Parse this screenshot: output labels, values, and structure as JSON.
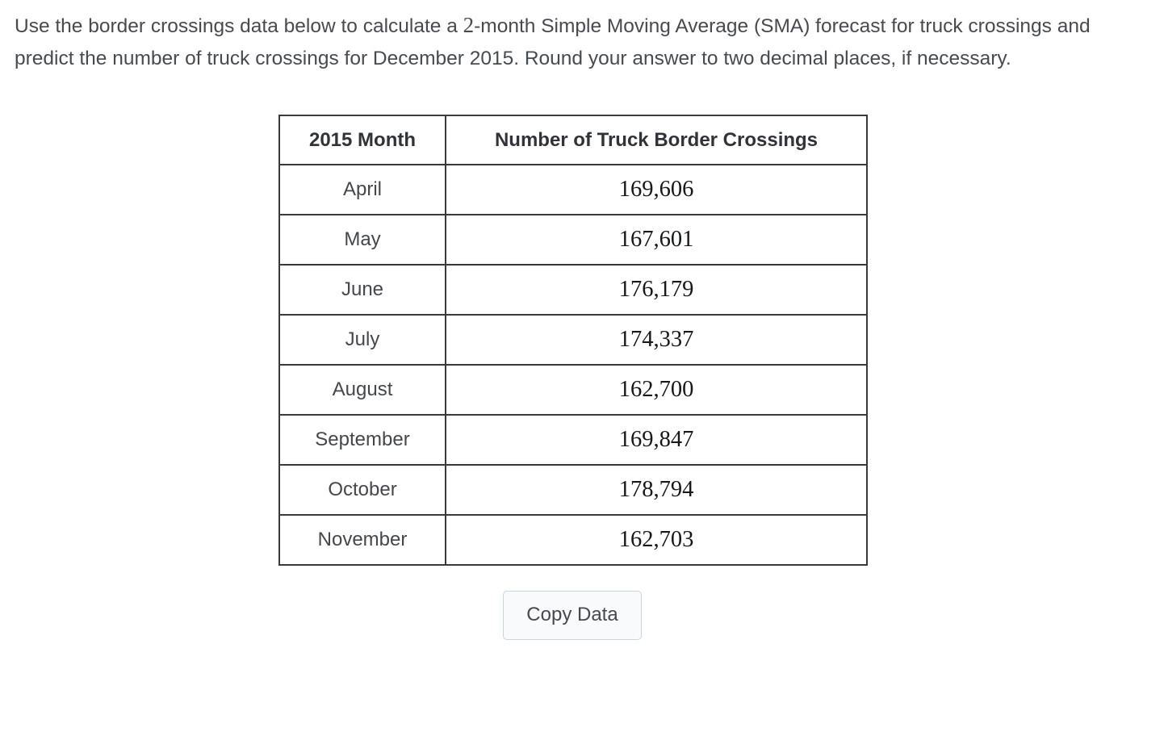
{
  "question": {
    "part1": "Use the border crossings data below to calculate a ",
    "sma_n": "2",
    "part2": "-month Simple Moving Average (SMA) forecast for truck crossings and predict the number of truck crossings for December 2015. Round your answer to two decimal places, if necessary."
  },
  "table": {
    "headers": {
      "month": "2015 Month",
      "value": "Number of Truck Border Crossings"
    },
    "rows": [
      {
        "month": "April",
        "value": "169,606"
      },
      {
        "month": "May",
        "value": "167,601"
      },
      {
        "month": "June",
        "value": "176,179"
      },
      {
        "month": "July",
        "value": "174,337"
      },
      {
        "month": "August",
        "value": "162,700"
      },
      {
        "month": "September",
        "value": "169,847"
      },
      {
        "month": "October",
        "value": "178,794"
      },
      {
        "month": "November",
        "value": "162,703"
      }
    ]
  },
  "button": {
    "copy_label": "Copy Data"
  }
}
